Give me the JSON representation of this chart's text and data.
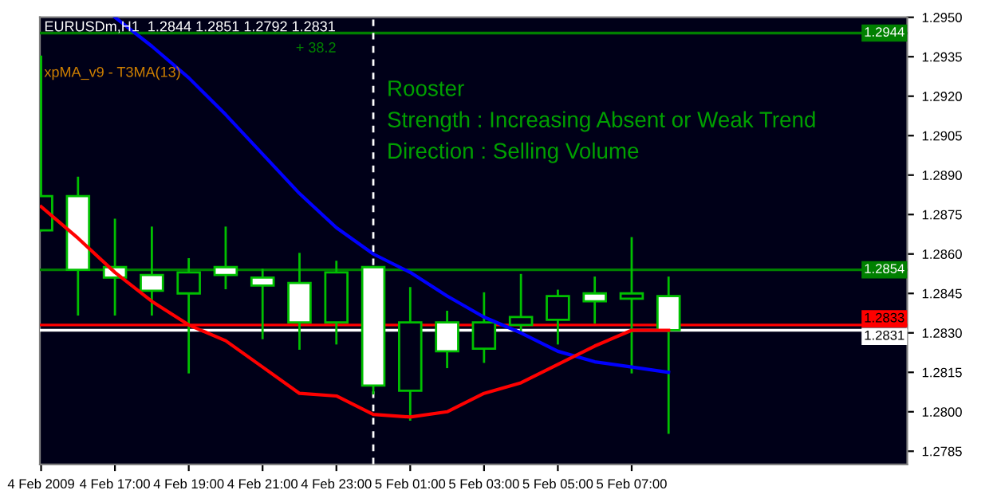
{
  "chart_data": {
    "type": "candlestick",
    "title": "EURUSDm,H1  1.2844 1.2851 1.2792 1.2831",
    "annotations": [
      "xpMA_v9 - T3MA(13)",
      "+ 38.2",
      "Rooster",
      "Strength : Increasing Absent or Weak Trend",
      "Direction : Selling Volume"
    ],
    "x": [
      "2009-02-04T15:00",
      "2009-02-04T16:00",
      "2009-02-04T17:00",
      "2009-02-04T18:00",
      "2009-02-04T19:00",
      "2009-02-04T20:00",
      "2009-02-04T21:00",
      "2009-02-04T22:00",
      "2009-02-04T23:00",
      "2009-02-05T00:00",
      "2009-02-05T01:00",
      "2009-02-05T02:00",
      "2009-02-05T03:00",
      "2009-02-05T04:00",
      "2009-02-05T05:00",
      "2009-02-05T06:00",
      "2009-02-05T07:00",
      "2009-02-05T08:00"
    ],
    "series": [
      {
        "type": "candlestick",
        "color": "#00c000",
        "colors": [
          "#000018",
          "#ffffff",
          "#ffffff",
          "#ffffff",
          "#000018",
          "#ffffff",
          "#ffffff",
          "#ffffff",
          "#000018",
          "#ffffff",
          "#000018",
          "#ffffff",
          "#000018",
          "#000018",
          "#000018",
          "#ffffff",
          "#000018",
          "#ffffff"
        ],
        "ohlc": [
          [
            1.2869,
            1.2935,
            1.2869,
            1.2882
          ],
          [
            1.2882,
            1.2889,
            1.2837,
            1.2854
          ],
          [
            1.2855,
            1.2873,
            1.2837,
            1.2851
          ],
          [
            1.2852,
            1.287,
            1.2837,
            1.2846
          ],
          [
            1.2845,
            1.2858,
            1.2815,
            1.2853
          ],
          [
            1.2855,
            1.287,
            1.2847,
            1.2852
          ],
          [
            1.2851,
            1.2854,
            1.2828,
            1.2848
          ],
          [
            1.2849,
            1.286,
            1.2824,
            1.2834
          ],
          [
            1.2834,
            1.2857,
            1.2826,
            1.2853
          ],
          [
            1.2855,
            1.2855,
            1.2807,
            1.281
          ],
          [
            1.2808,
            1.2847,
            1.2797,
            1.2834
          ],
          [
            1.2834,
            1.2838,
            1.2817,
            1.2823
          ],
          [
            1.2824,
            1.2845,
            1.2819,
            1.2834
          ],
          [
            1.2833,
            1.2852,
            1.283,
            1.2836
          ],
          [
            1.2835,
            1.2846,
            1.2826,
            1.2844
          ],
          [
            1.2845,
            1.2851,
            1.2834,
            1.2842
          ],
          [
            1.2843,
            1.2866,
            1.2815,
            1.2845
          ],
          [
            1.2844,
            1.2851,
            1.2792,
            1.2831
          ]
        ]
      },
      {
        "type": "line",
        "color": "#0000ff",
        "values": [
          null,
          null,
          1.295,
          1.2939,
          1.2927,
          1.2913,
          1.2898,
          1.2883,
          1.287,
          1.286,
          1.2853,
          1.2844,
          1.2836,
          1.283,
          1.2823,
          1.2819,
          1.2817,
          1.2815
        ]
      },
      {
        "type": "line",
        "color": "#ff0000",
        "values": [
          1.2878,
          1.2866,
          1.2853,
          1.2842,
          1.2833,
          1.2827,
          1.2817,
          1.2807,
          1.2806,
          1.2799,
          1.2798,
          1.28,
          1.2807,
          1.2811,
          1.2818,
          1.2825,
          1.2831,
          1.2831
        ]
      }
    ],
    "ref_lines": [
      {
        "axis": "y",
        "value": 1.2944,
        "label": "1.2944",
        "color": "#008000"
      },
      {
        "axis": "y",
        "value": 1.2854,
        "label": "1.2854",
        "color": "#008000"
      },
      {
        "axis": "y",
        "value": 1.2833,
        "label": "1.2833",
        "color": "#ff0000"
      },
      {
        "axis": "y",
        "value": 1.2831,
        "label": "1.2831",
        "color": "#ffffff"
      },
      {
        "axis": "x",
        "value": "2009-02-05T00:00",
        "color": "#ffffff",
        "line_style": "dashed"
      }
    ],
    "xlim": [
      "2009-02-04T14:58",
      "2009-02-05T14:28"
    ],
    "xticks": [
      {
        "value": "2009-02-04T15:00",
        "label": "4 Feb 2009"
      },
      {
        "value": "2009-02-04T17:00",
        "label": "4 Feb 17:00"
      },
      {
        "value": "2009-02-04T19:00",
        "label": "4 Feb 19:00"
      },
      {
        "value": "2009-02-04T21:00",
        "label": "4 Feb 21:00"
      },
      {
        "value": "2009-02-04T23:00",
        "label": "4 Feb 23:00"
      },
      {
        "value": "2009-02-05T01:00",
        "label": "5 Feb 01:00"
      },
      {
        "value": "2009-02-05T03:00",
        "label": "5 Feb 03:00"
      },
      {
        "value": "2009-02-05T05:00",
        "label": "5 Feb 05:00"
      },
      {
        "value": "2009-02-05T07:00",
        "label": "5 Feb 07:00"
      }
    ],
    "ylim": [
      1.278,
      1.295
    ],
    "yticks": [
      {
        "value": 1.295,
        "label": "1.2950"
      },
      {
        "value": 1.2935,
        "label": "1.2935"
      },
      {
        "value": 1.292,
        "label": "1.2920"
      },
      {
        "value": 1.2905,
        "label": "1.2905"
      },
      {
        "value": 1.289,
        "label": "1.2890"
      },
      {
        "value": 1.2875,
        "label": "1.2875"
      },
      {
        "value": 1.286,
        "label": "1.2860"
      },
      {
        "value": 1.2845,
        "label": "1.2845"
      },
      {
        "value": 1.283,
        "label": "1.2830"
      },
      {
        "value": 1.2815,
        "label": "1.2815"
      },
      {
        "value": 1.28,
        "label": "1.2800"
      },
      {
        "value": 1.2785,
        "label": "1.2785"
      }
    ],
    "grid": false
  }
}
